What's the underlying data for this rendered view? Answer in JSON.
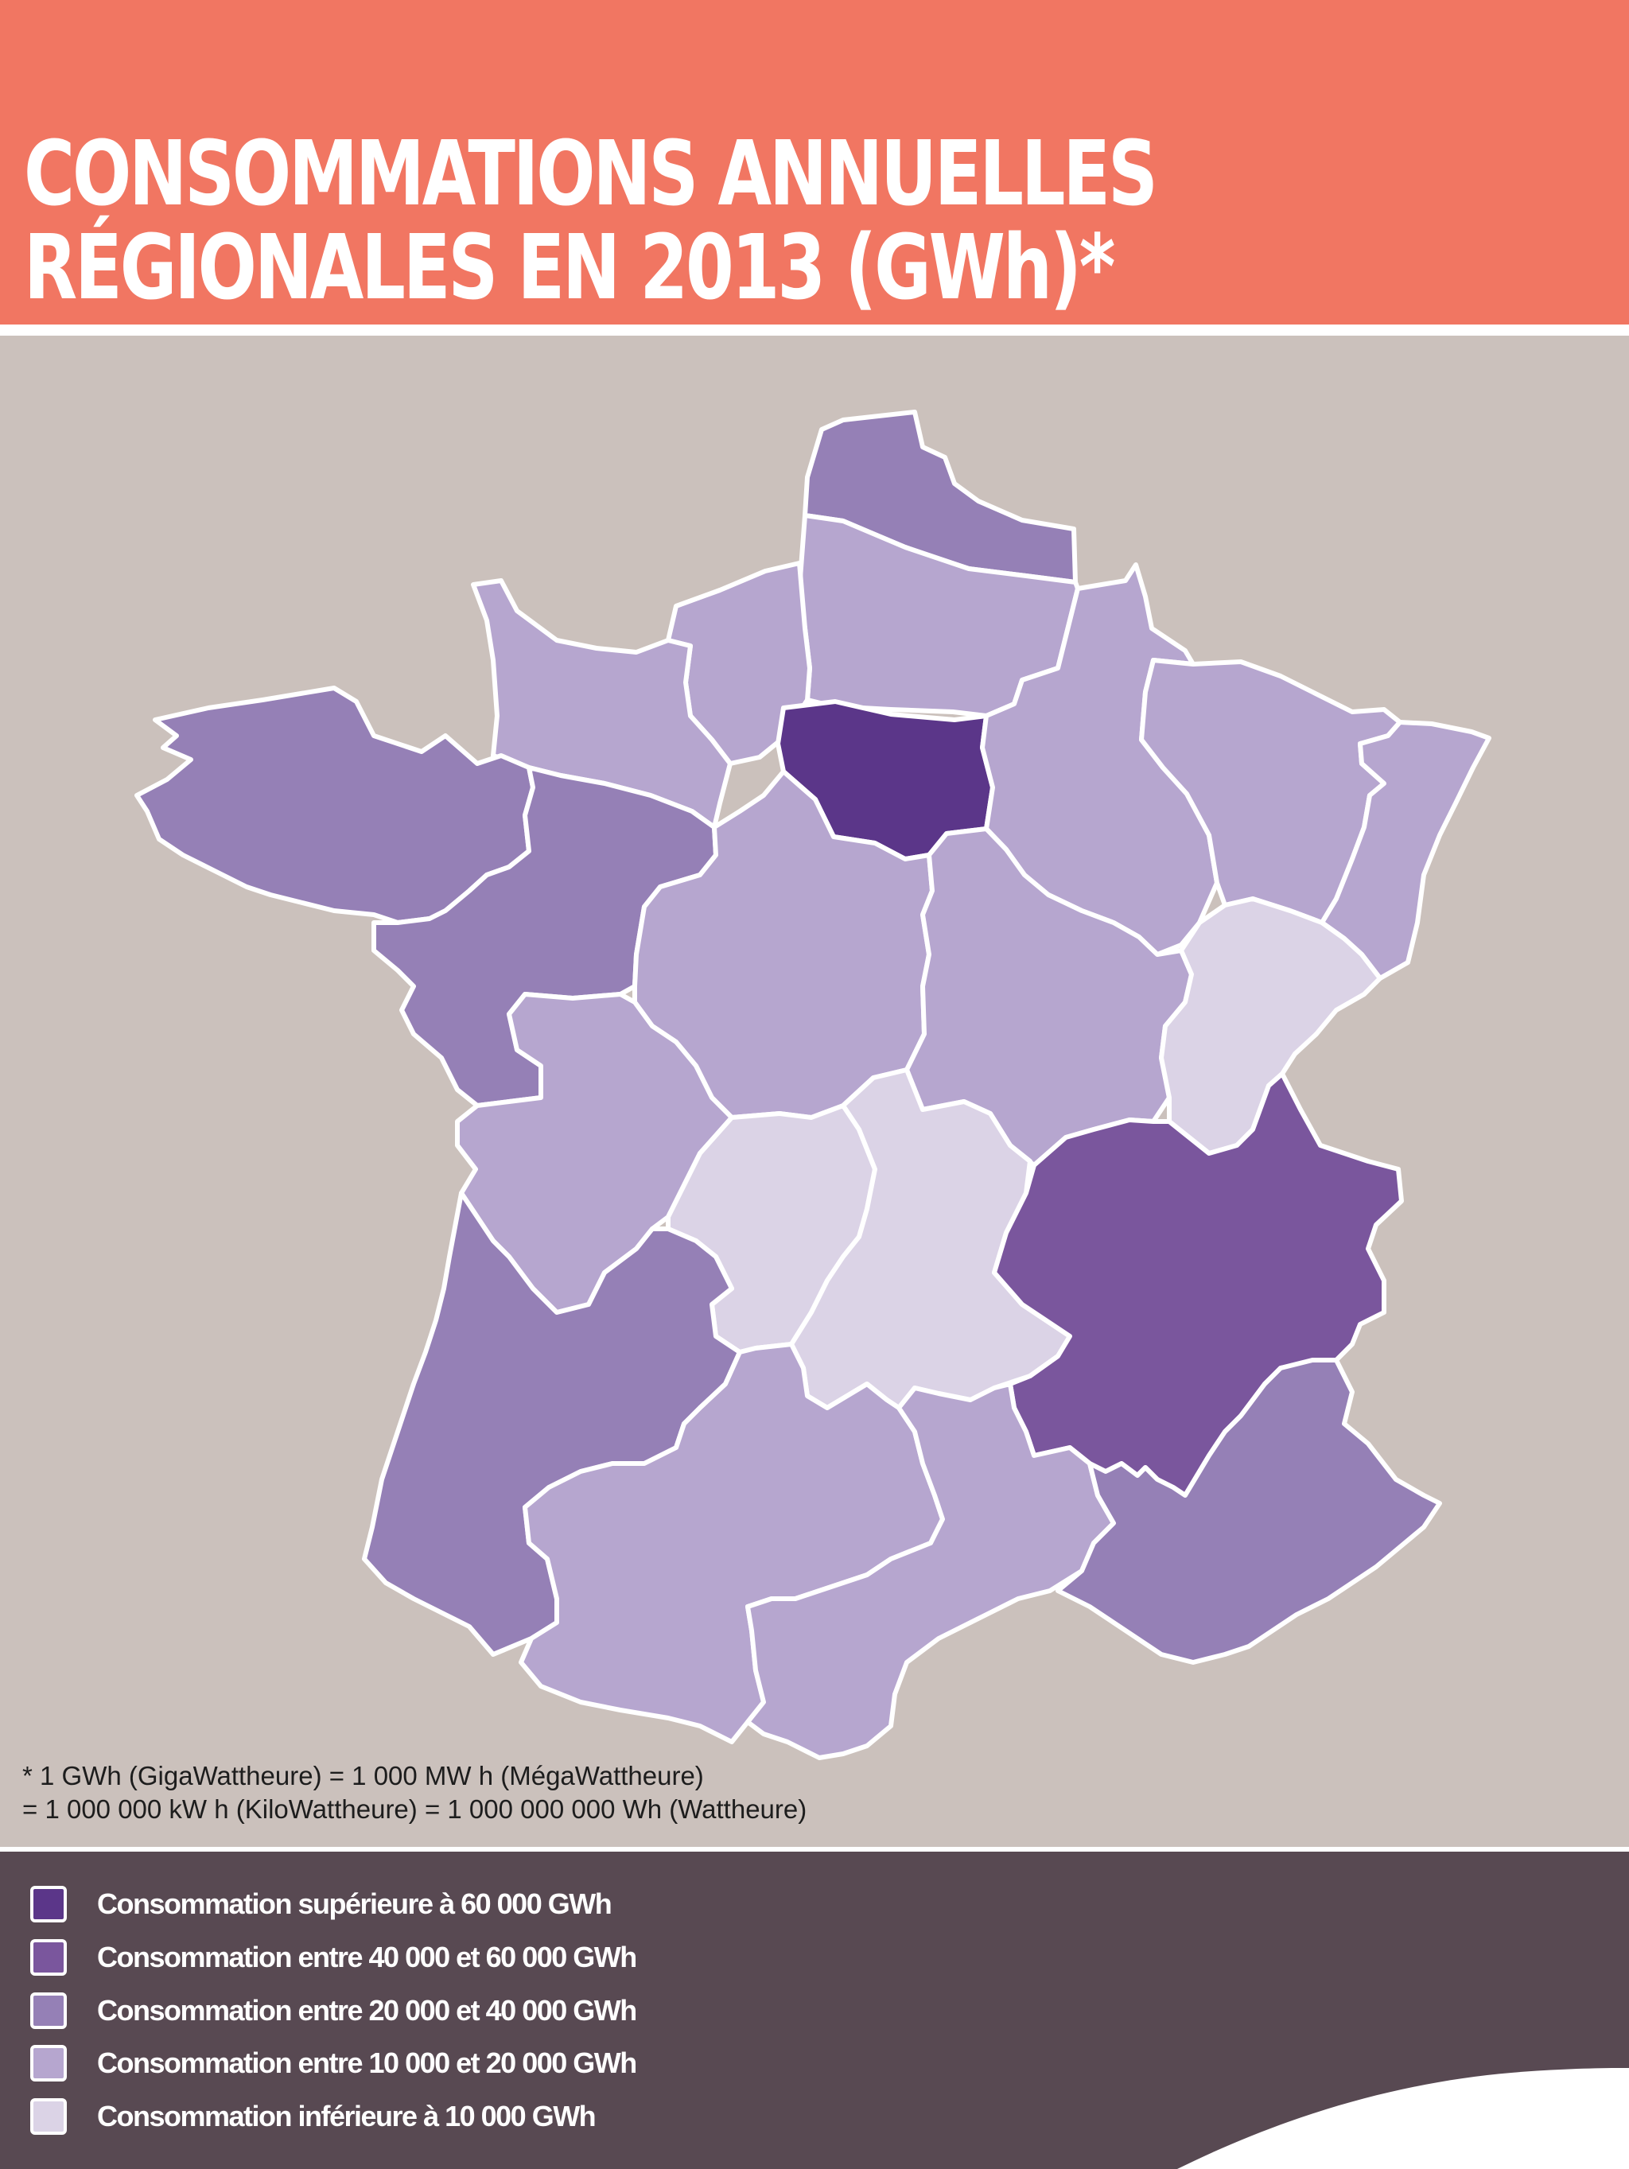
{
  "header": {
    "title_line1": "CONSOMMATIONS ANNUELLES",
    "title_line2": "RÉGIONALES EN 2013 (GWh)*"
  },
  "colors": {
    "header_bg": "#f17662",
    "map_bg": "#cbc1bc",
    "legend_bg": "#584952",
    "border": "#ffffff"
  },
  "legend": {
    "items": [
      {
        "label": "Consommation supérieure à 60 000 GWh",
        "color": "#5b3689"
      },
      {
        "label": "Consommation entre  40 000 et 60 000 GWh",
        "color": "#7a569d"
      },
      {
        "label": "Consommation entre  20 000 et 40 000 GWh",
        "color": "#9580b6"
      },
      {
        "label": "Consommation entre  10 000 et 20 000 GWh",
        "color": "#b6a6cf"
      },
      {
        "label": "Consommation inférieure à 10 000 GWh",
        "color": "#dbd3e6"
      }
    ]
  },
  "map": {
    "regions": [
      {
        "id": "nord-pas-de-calais",
        "class": 2
      },
      {
        "id": "picardie",
        "class": 3
      },
      {
        "id": "haute-normandie",
        "class": 3
      },
      {
        "id": "basse-normandie",
        "class": 3
      },
      {
        "id": "ile-de-france",
        "class": 0
      },
      {
        "id": "champagne-ardenne",
        "class": 3
      },
      {
        "id": "lorraine",
        "class": 3
      },
      {
        "id": "alsace",
        "class": 3
      },
      {
        "id": "bretagne",
        "class": 2
      },
      {
        "id": "pays-de-la-loire",
        "class": 2
      },
      {
        "id": "centre",
        "class": 3
      },
      {
        "id": "bourgogne",
        "class": 3
      },
      {
        "id": "franche-comte",
        "class": 4
      },
      {
        "id": "poitou-charentes",
        "class": 3
      },
      {
        "id": "limousin",
        "class": 4
      },
      {
        "id": "auvergne",
        "class": 4
      },
      {
        "id": "rhone-alpes",
        "class": 1
      },
      {
        "id": "aquitaine",
        "class": 2
      },
      {
        "id": "midi-pyrenees",
        "class": 3
      },
      {
        "id": "languedoc-roussillon",
        "class": 3
      },
      {
        "id": "provence-alpes-cote-dazur",
        "class": 2
      }
    ]
  },
  "footnote": {
    "line1": "* 1 GWh (GigaWattheure) =  1 000 MW h (MégaWattheure)",
    "line2": "= 1 000 000 kW h (KiloWattheure) = 1 000 000 000 Wh (Wattheure)"
  }
}
